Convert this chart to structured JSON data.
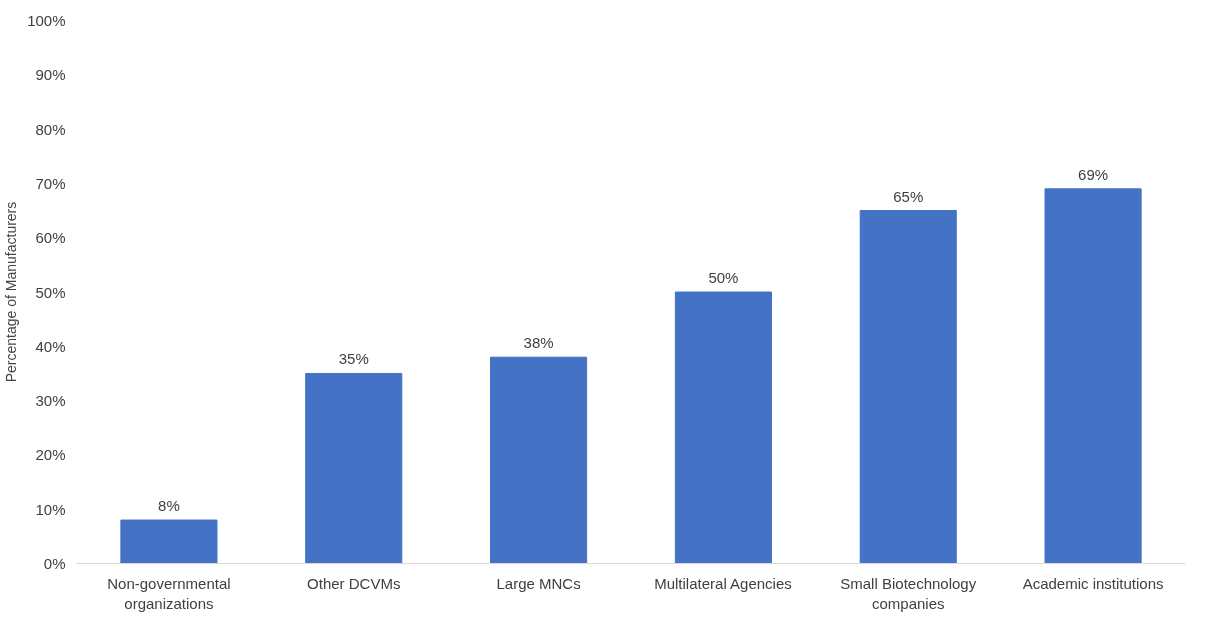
{
  "chart_data": {
    "type": "bar",
    "ylabel": "Percentage of Manufacturers",
    "categories": [
      "Non-governmental organizations",
      "Other DCVMs",
      "Large MNCs",
      "Multilateral Agencies",
      "Small Biotechnology companies",
      "Academic institutions"
    ],
    "values": [
      8,
      35,
      38,
      50,
      65,
      69
    ],
    "value_labels": [
      "8%",
      "35%",
      "38%",
      "50%",
      "65%",
      "69%"
    ],
    "color": "#4472c4",
    "ylim": [
      0,
      100
    ],
    "yticks": [
      {
        "value": 0,
        "label": "0%"
      },
      {
        "value": 10,
        "label": "10%"
      },
      {
        "value": 20,
        "label": "20%"
      },
      {
        "value": 30,
        "label": "30%"
      },
      {
        "value": 40,
        "label": "40%"
      },
      {
        "value": 50,
        "label": "50%"
      },
      {
        "value": 60,
        "label": "60%"
      },
      {
        "value": 70,
        "label": "70%"
      },
      {
        "value": 80,
        "label": "80%"
      },
      {
        "value": 90,
        "label": "90%"
      },
      {
        "value": 100,
        "label": "100%"
      }
    ],
    "grid": false
  }
}
